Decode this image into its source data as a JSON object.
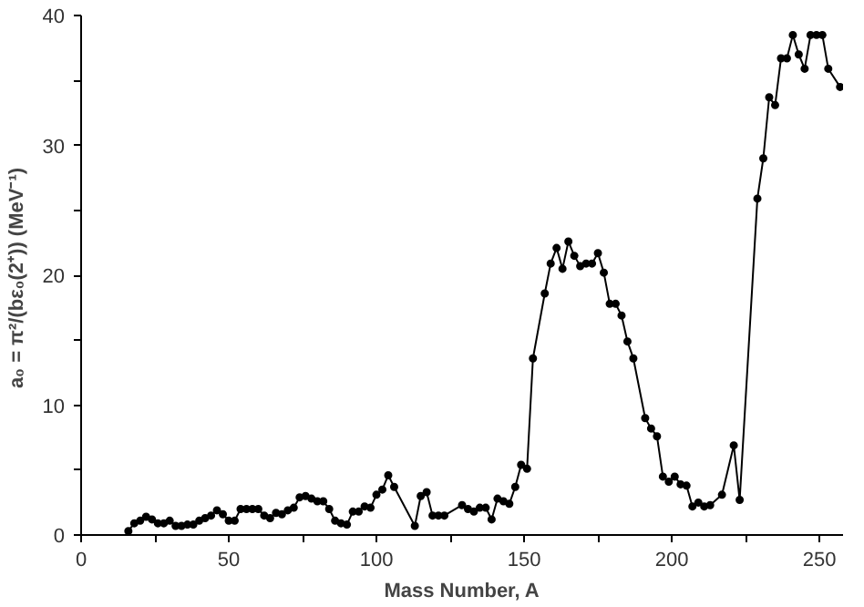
{
  "chart_data": {
    "type": "line",
    "xlabel": "Mass Number, A",
    "ylabel": "a₀ = π²/(bε₀(2⁺))  (MeV⁻¹)",
    "x": [
      16,
      18,
      20,
      22,
      24,
      26,
      28,
      30,
      32,
      34,
      36,
      38,
      40,
      42,
      44,
      46,
      48,
      50,
      52,
      54,
      56,
      58,
      60,
      62,
      64,
      66,
      68,
      70,
      72,
      74,
      76,
      78,
      80,
      82,
      84,
      86,
      88,
      90,
      92,
      94,
      96,
      98,
      100,
      102,
      104,
      106,
      113,
      115,
      117,
      119,
      121,
      123,
      129,
      131,
      133,
      135,
      137,
      139,
      141,
      143,
      145,
      147,
      149,
      151,
      153,
      157,
      159,
      161,
      163,
      165,
      167,
      169,
      171,
      173,
      175,
      177,
      179,
      181,
      183,
      185,
      187,
      191,
      193,
      195,
      197,
      199,
      201,
      203,
      205,
      207,
      209,
      211,
      213,
      217,
      221,
      223,
      229,
      231,
      233,
      235,
      237,
      239,
      241,
      243,
      245,
      247,
      249,
      251,
      253,
      257
    ],
    "values": [
      0.3,
      0.9,
      1.1,
      1.4,
      1.2,
      0.9,
      0.9,
      1.1,
      0.7,
      0.7,
      0.8,
      0.8,
      1.1,
      1.3,
      1.5,
      1.9,
      1.6,
      1.1,
      1.1,
      2.0,
      2.0,
      2.0,
      2.0,
      1.5,
      1.3,
      1.7,
      1.6,
      1.9,
      2.1,
      2.9,
      3.0,
      2.8,
      2.6,
      2.6,
      2.0,
      1.1,
      0.9,
      0.8,
      1.8,
      1.8,
      2.2,
      2.1,
      3.1,
      3.5,
      4.6,
      3.7,
      0.7,
      3.0,
      3.3,
      1.5,
      1.5,
      1.5,
      2.3,
      2.0,
      1.8,
      2.1,
      2.1,
      1.2,
      2.8,
      2.6,
      2.4,
      3.7,
      5.4,
      5.1,
      13.6,
      18.6,
      20.9,
      22.1,
      20.5,
      22.6,
      21.5,
      20.7,
      20.9,
      20.9,
      21.7,
      20.2,
      17.8,
      17.8,
      16.9,
      14.9,
      13.6,
      9.0,
      8.2,
      7.6,
      4.5,
      4.1,
      4.5,
      3.9,
      3.8,
      2.2,
      2.5,
      2.2,
      2.3,
      3.1,
      6.9,
      2.7,
      25.9,
      29.0,
      33.7,
      33.1,
      36.7,
      36.7,
      38.5,
      37.0,
      35.9,
      38.5,
      38.5,
      38.5,
      35.9,
      34.5
    ],
    "color": "#000000",
    "marker": "circle",
    "line_style": "solid",
    "grid": false,
    "xlim": [
      0,
      258
    ],
    "ylim": [
      0,
      40
    ],
    "xticks": [
      0,
      {
        "value": 25,
        "label": null
      },
      50,
      {
        "value": 75,
        "label": null
      },
      100,
      {
        "value": 125,
        "label": null
      },
      150,
      {
        "value": 175,
        "label": null
      },
      200,
      {
        "value": 225,
        "label": null
      },
      250
    ],
    "yticks": [
      0,
      {
        "value": 5,
        "label": null
      },
      10,
      {
        "value": 15,
        "label": null
      },
      20,
      {
        "value": 25,
        "label": null
      },
      30,
      {
        "value": 35,
        "label": null
      },
      40
    ]
  }
}
